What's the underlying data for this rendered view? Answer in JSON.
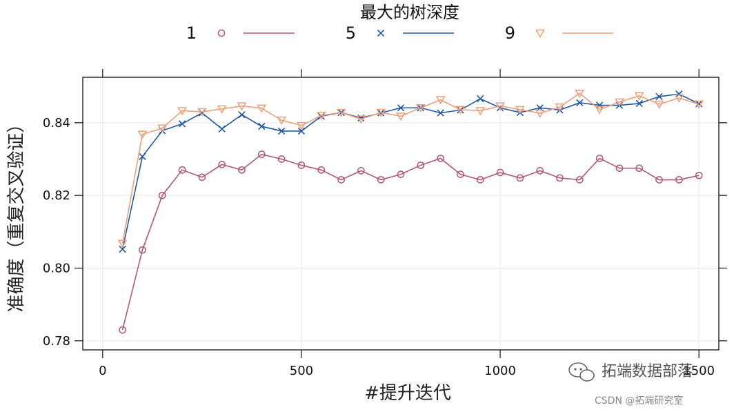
{
  "colors": {
    "depth_1": "#b5566f",
    "depth_5": "#2056a8",
    "depth_9": "#ee9f78",
    "grid": "#e6e6e6",
    "frame": "#111111"
  },
  "watermark": {
    "icon": "wechat-bubble-icon",
    "brand": "拓端数据部落",
    "credit": "CSDN @拓端研究室"
  },
  "chart_data": {
    "type": "line",
    "title": "",
    "legend_title": "最大的树深度",
    "legend_position": "top",
    "xlabel": "#提升迭代",
    "ylabel": "准确度（重复交叉验证）",
    "xlim": [
      -50,
      1550
    ],
    "ylim": [
      0.7775,
      0.8525
    ],
    "xticks": [
      0,
      500,
      1000,
      1500
    ],
    "xtick_labels": [
      "0",
      "500",
      "1000",
      "1500"
    ],
    "yticks": [
      0.78,
      0.8,
      0.82,
      0.84
    ],
    "ytick_labels": [
      "0.78",
      "0.80",
      "0.82",
      "0.84"
    ],
    "grid": true,
    "x": [
      50,
      100,
      150,
      200,
      250,
      300,
      350,
      400,
      450,
      500,
      550,
      600,
      650,
      700,
      750,
      800,
      850,
      900,
      950,
      1000,
      1050,
      1100,
      1150,
      1200,
      1250,
      1300,
      1350,
      1400,
      1450,
      1500
    ],
    "series": [
      {
        "name": "1",
        "marker": "circle",
        "color_key": "depth_1",
        "values": [
          0.783,
          0.805,
          0.82,
          0.827,
          0.825,
          0.8285,
          0.827,
          0.8313,
          0.83,
          0.8283,
          0.827,
          0.8243,
          0.8268,
          0.8243,
          0.8258,
          0.8283,
          0.8302,
          0.8258,
          0.8243,
          0.8263,
          0.8248,
          0.8268,
          0.8248,
          0.8243,
          0.8302,
          0.8275,
          0.8275,
          0.8243,
          0.8243,
          0.8255
        ]
      },
      {
        "name": "5",
        "marker": "cross",
        "color_key": "depth_5",
        "values": [
          0.8052,
          0.8307,
          0.8378,
          0.8397,
          0.8427,
          0.8383,
          0.8422,
          0.839,
          0.8377,
          0.8377,
          0.8418,
          0.8428,
          0.8413,
          0.8427,
          0.8441,
          0.8441,
          0.8427,
          0.8435,
          0.8466,
          0.8441,
          0.8428,
          0.8441,
          0.8435,
          0.8455,
          0.8448,
          0.8448,
          0.8453,
          0.8472,
          0.8479,
          0.8452
        ]
      },
      {
        "name": "9",
        "marker": "triangle-down",
        "color_key": "depth_9",
        "values": [
          0.8068,
          0.8368,
          0.8385,
          0.8433,
          0.843,
          0.8438,
          0.8446,
          0.844,
          0.8407,
          0.8392,
          0.842,
          0.8428,
          0.841,
          0.8428,
          0.8418,
          0.8441,
          0.8463,
          0.8436,
          0.8433,
          0.8446,
          0.8436,
          0.8426,
          0.8443,
          0.8481,
          0.8436,
          0.8457,
          0.8474,
          0.8451,
          0.8468,
          0.8451
        ]
      }
    ]
  }
}
